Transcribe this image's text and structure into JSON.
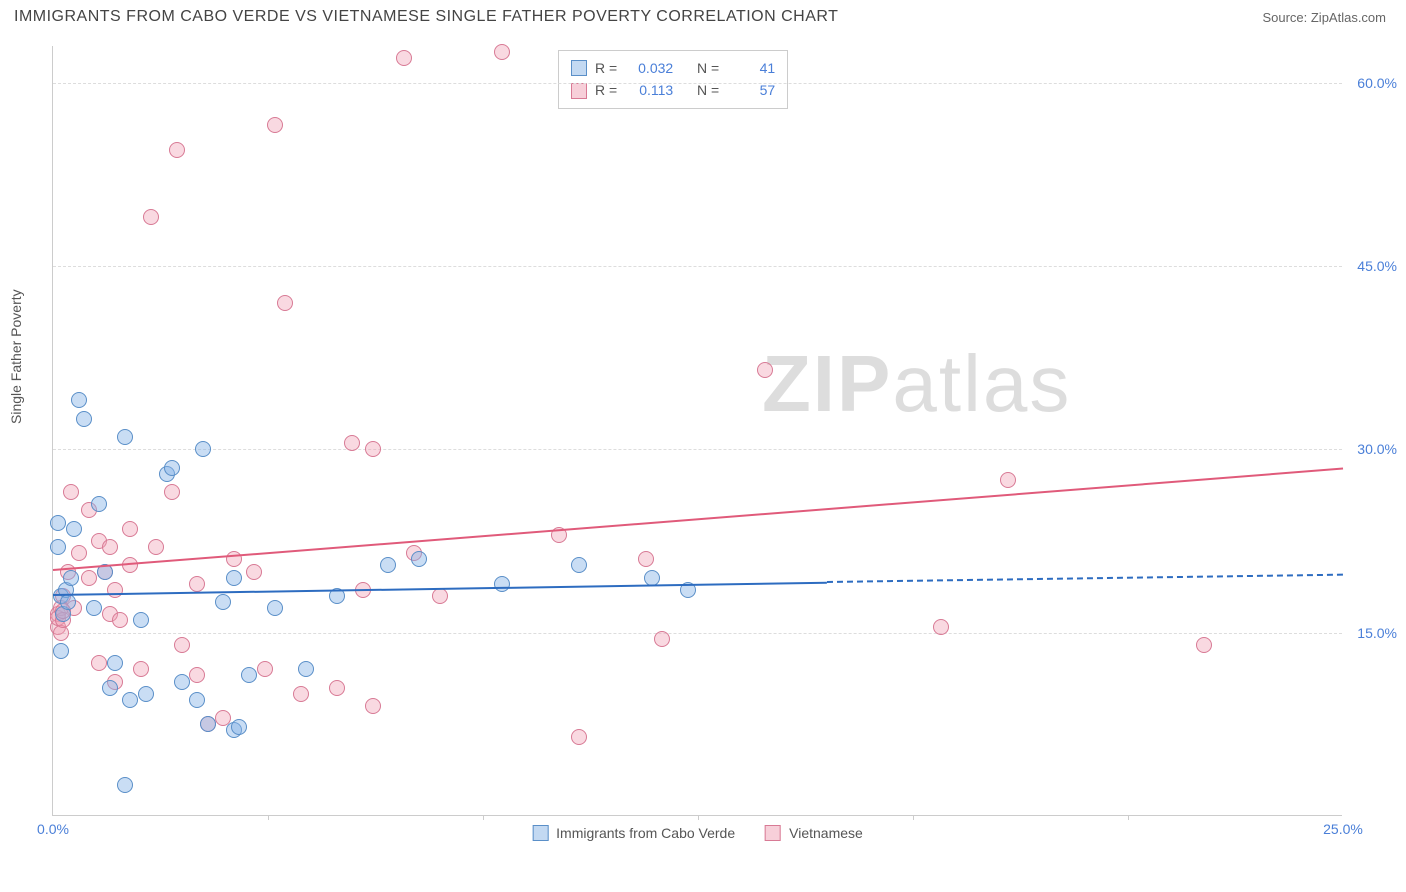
{
  "title": "IMMIGRANTS FROM CABO VERDE VS VIETNAMESE SINGLE FATHER POVERTY CORRELATION CHART",
  "source_label": "Source: ",
  "source_name": "ZipAtlas.com",
  "watermark_a": "ZIP",
  "watermark_b": "atlas",
  "chart": {
    "type": "scatter",
    "xlim": [
      0,
      25
    ],
    "ylim": [
      0,
      63
    ],
    "background_color": "#ffffff",
    "grid_color": "#dddddd",
    "axis_color": "#cccccc",
    "tick_color": "#4a7fd8",
    "yticks": [
      15,
      30,
      45,
      60
    ],
    "ytick_labels": [
      "15.0%",
      "30.0%",
      "45.0%",
      "60.0%"
    ],
    "xticks_major": [
      0,
      25
    ],
    "xtick_labels": [
      "0.0%",
      "25.0%"
    ],
    "xticks_minor": [
      4.17,
      8.33,
      12.5,
      16.67,
      20.83
    ],
    "xlabel": "",
    "ylabel": "Single Father Poverty",
    "marker_size": 16,
    "title_fontsize": 16,
    "label_fontsize": 14
  },
  "series": {
    "blue": {
      "label": "Immigrants from Cabo Verde",
      "fill": "rgba(135,180,230,0.45)",
      "stroke": "#5a8fc8",
      "trend_color": "#2d6cc0",
      "r_label": "R =",
      "r_value": "0.032",
      "n_label": "N =",
      "n_value": "41",
      "trend": {
        "x1": 0,
        "y1": 18.2,
        "x2": 15,
        "y2": 19.2,
        "solid_until": 15,
        "dash_to": 25,
        "y_dash_end": 19.8
      },
      "points": [
        [
          0.1,
          24.0
        ],
        [
          0.1,
          22.0
        ],
        [
          0.15,
          18.0
        ],
        [
          0.15,
          13.5
        ],
        [
          0.2,
          16.5
        ],
        [
          0.25,
          18.5
        ],
        [
          0.4,
          23.5
        ],
        [
          0.5,
          34.0
        ],
        [
          0.6,
          32.5
        ],
        [
          0.8,
          17.0
        ],
        [
          0.9,
          25.5
        ],
        [
          1.0,
          20.0
        ],
        [
          1.1,
          10.5
        ],
        [
          1.2,
          12.5
        ],
        [
          1.4,
          31.0
        ],
        [
          1.5,
          9.5
        ],
        [
          1.4,
          2.5
        ],
        [
          1.7,
          16.0
        ],
        [
          1.8,
          10.0
        ],
        [
          2.2,
          28.0
        ],
        [
          2.3,
          28.5
        ],
        [
          2.5,
          11.0
        ],
        [
          2.8,
          9.5
        ],
        [
          2.9,
          30.0
        ],
        [
          3.0,
          7.5
        ],
        [
          3.3,
          17.5
        ],
        [
          3.5,
          19.5
        ],
        [
          3.5,
          7.0
        ],
        [
          3.6,
          7.3
        ],
        [
          3.8,
          11.5
        ],
        [
          4.3,
          17.0
        ],
        [
          4.9,
          12.0
        ],
        [
          5.5,
          18.0
        ],
        [
          6.5,
          20.5
        ],
        [
          7.1,
          21.0
        ],
        [
          8.7,
          19.0
        ],
        [
          10.2,
          20.5
        ],
        [
          11.6,
          19.5
        ],
        [
          12.3,
          18.5
        ],
        [
          0.3,
          17.5
        ],
        [
          0.35,
          19.5
        ]
      ]
    },
    "pink": {
      "label": "Vietnamese",
      "fill": "rgba(240,160,180,0.4)",
      "stroke": "#d87a95",
      "trend_color": "#e05a7a",
      "r_label": "R =",
      "r_value": "0.113",
      "n_label": "N =",
      "n_value": "57",
      "trend": {
        "x1": 0,
        "y1": 20.2,
        "x2": 25,
        "y2": 28.5
      },
      "points": [
        [
          0.1,
          16.5
        ],
        [
          0.1,
          15.5
        ],
        [
          0.1,
          16.2
        ],
        [
          0.15,
          17.0
        ],
        [
          0.15,
          15.0
        ],
        [
          0.2,
          16.0
        ],
        [
          0.2,
          18.0
        ],
        [
          0.3,
          20.0
        ],
        [
          0.35,
          26.5
        ],
        [
          0.5,
          21.5
        ],
        [
          0.7,
          25.0
        ],
        [
          0.7,
          19.5
        ],
        [
          0.9,
          22.5
        ],
        [
          0.9,
          12.5
        ],
        [
          1.0,
          20.0
        ],
        [
          1.1,
          16.5
        ],
        [
          1.1,
          22.0
        ],
        [
          1.2,
          18.5
        ],
        [
          1.2,
          11.0
        ],
        [
          1.3,
          16.0
        ],
        [
          1.5,
          23.5
        ],
        [
          1.5,
          20.5
        ],
        [
          1.7,
          12.0
        ],
        [
          1.9,
          49.0
        ],
        [
          2.0,
          22.0
        ],
        [
          2.3,
          26.5
        ],
        [
          2.4,
          54.5
        ],
        [
          2.5,
          14.0
        ],
        [
          2.8,
          19.0
        ],
        [
          2.8,
          11.5
        ],
        [
          3.0,
          7.5
        ],
        [
          3.3,
          8.0
        ],
        [
          3.5,
          21.0
        ],
        [
          3.9,
          20.0
        ],
        [
          4.1,
          12.0
        ],
        [
          4.3,
          56.5
        ],
        [
          4.5,
          42.0
        ],
        [
          4.8,
          10.0
        ],
        [
          5.5,
          10.5
        ],
        [
          5.8,
          30.5
        ],
        [
          6.0,
          18.5
        ],
        [
          6.2,
          30.0
        ],
        [
          6.2,
          9.0
        ],
        [
          6.8,
          62.0
        ],
        [
          7.0,
          21.5
        ],
        [
          7.5,
          18.0
        ],
        [
          8.7,
          62.5
        ],
        [
          9.8,
          23.0
        ],
        [
          10.2,
          6.5
        ],
        [
          11.5,
          21.0
        ],
        [
          11.8,
          14.5
        ],
        [
          13.8,
          36.5
        ],
        [
          17.2,
          15.5
        ],
        [
          18.5,
          27.5
        ],
        [
          22.3,
          14.0
        ],
        [
          0.4,
          17.0
        ],
        [
          0.2,
          16.8
        ]
      ]
    }
  },
  "legend_bottom": {
    "items": [
      {
        "color": "blue",
        "label": "Immigrants from Cabo Verde"
      },
      {
        "color": "pink",
        "label": "Vietnamese"
      }
    ]
  }
}
